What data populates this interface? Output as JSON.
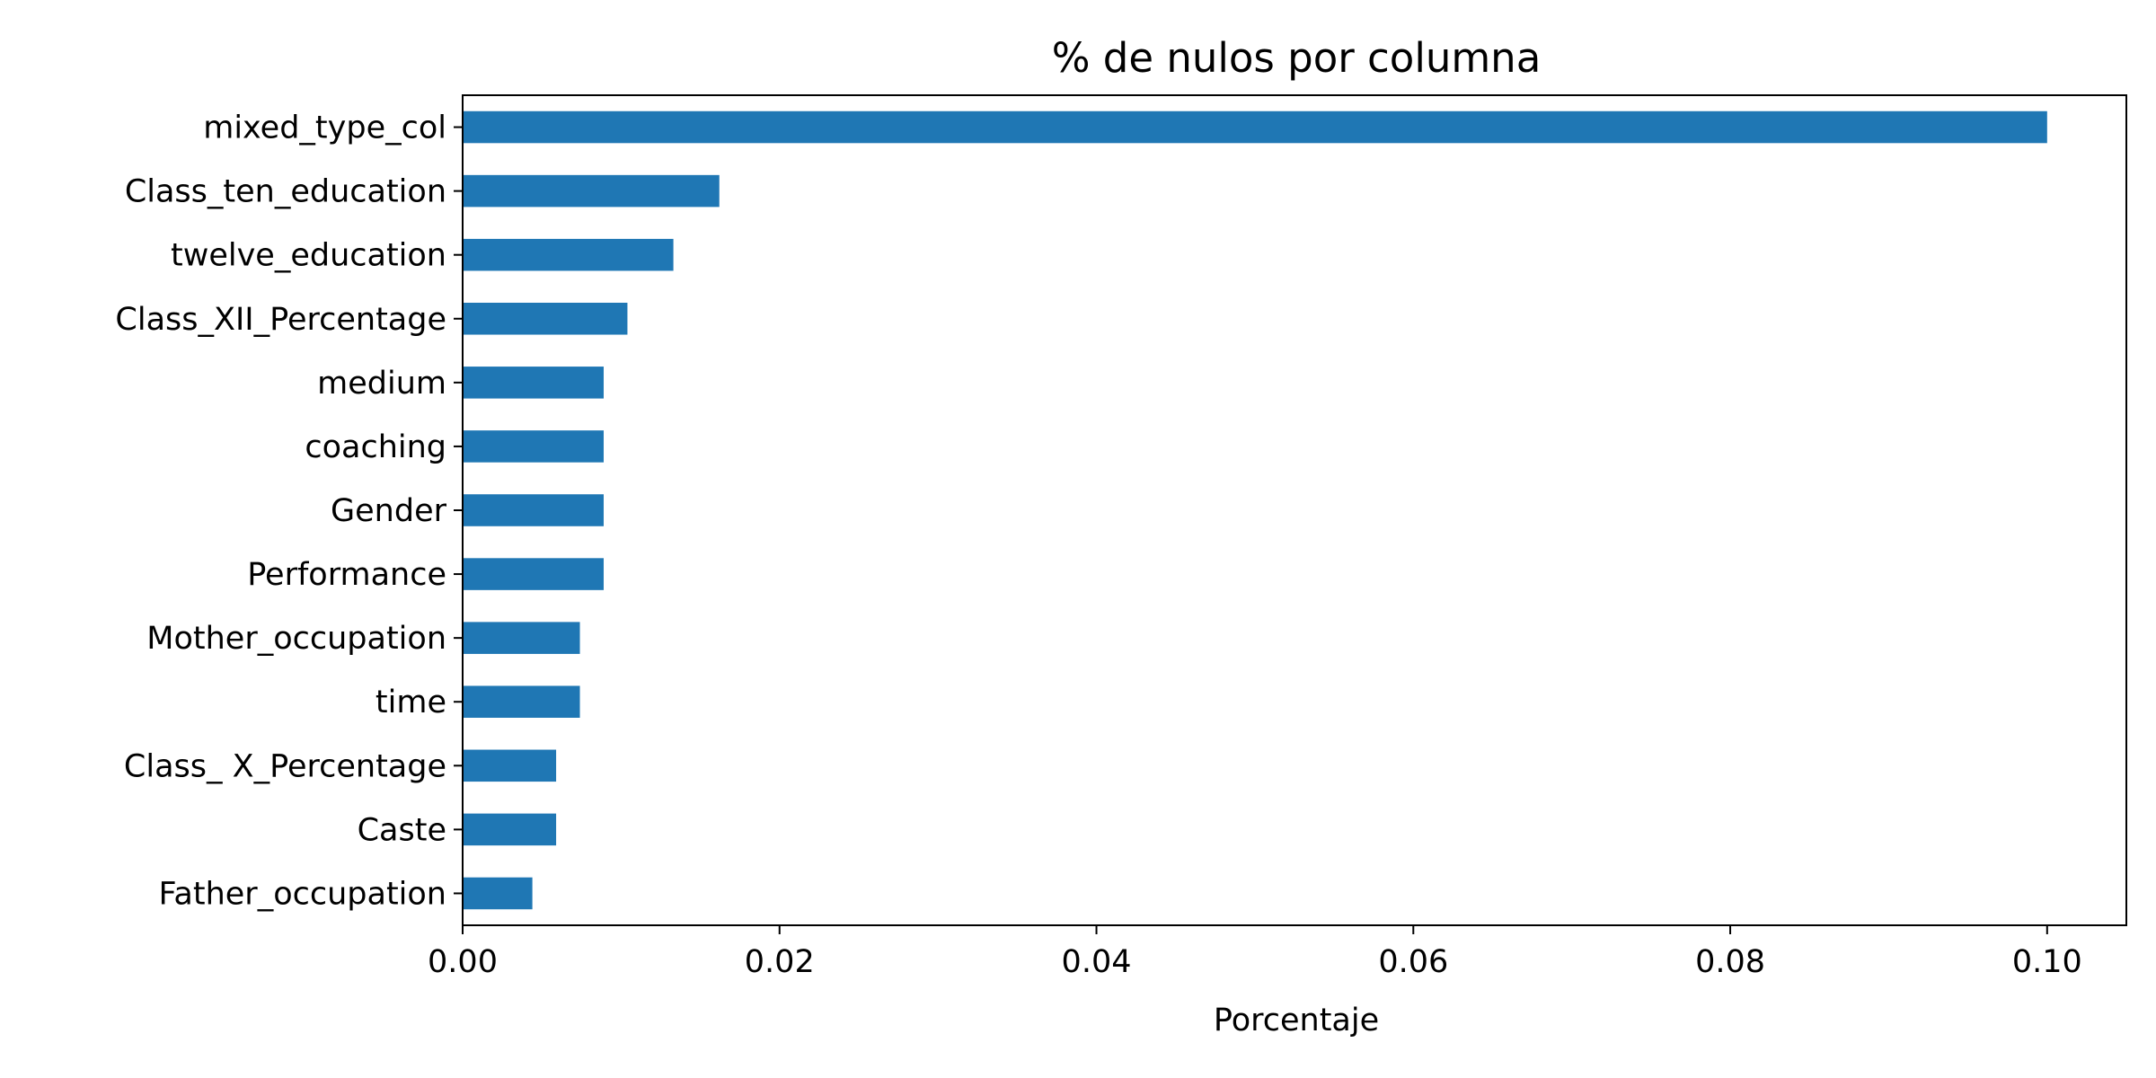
{
  "chart_data": {
    "type": "bar",
    "orientation": "horizontal",
    "title": "% de nulos por columna",
    "xlabel": "Porcentaje",
    "ylabel": "",
    "categories": [
      "mixed_type_col",
      "Class_ten_education",
      "twelve_education",
      "Class_XII_Percentage",
      "medium",
      "coaching",
      "Gender",
      "Performance",
      "Mother_occupation",
      "time",
      "Class_ X_Percentage",
      "Caste",
      "Father_occupation"
    ],
    "values": [
      0.1,
      0.0162,
      0.0133,
      0.0104,
      0.0089,
      0.0089,
      0.0089,
      0.0089,
      0.0074,
      0.0074,
      0.0059,
      0.0059,
      0.0044
    ],
    "xlim": [
      0,
      0.105
    ],
    "xticks": [
      0.0,
      0.02,
      0.04,
      0.06,
      0.08,
      0.1
    ],
    "xtick_labels": [
      "0.00",
      "0.02",
      "0.04",
      "0.06",
      "0.08",
      "0.10"
    ],
    "grid": false,
    "bar_color": "#1f77b4"
  }
}
